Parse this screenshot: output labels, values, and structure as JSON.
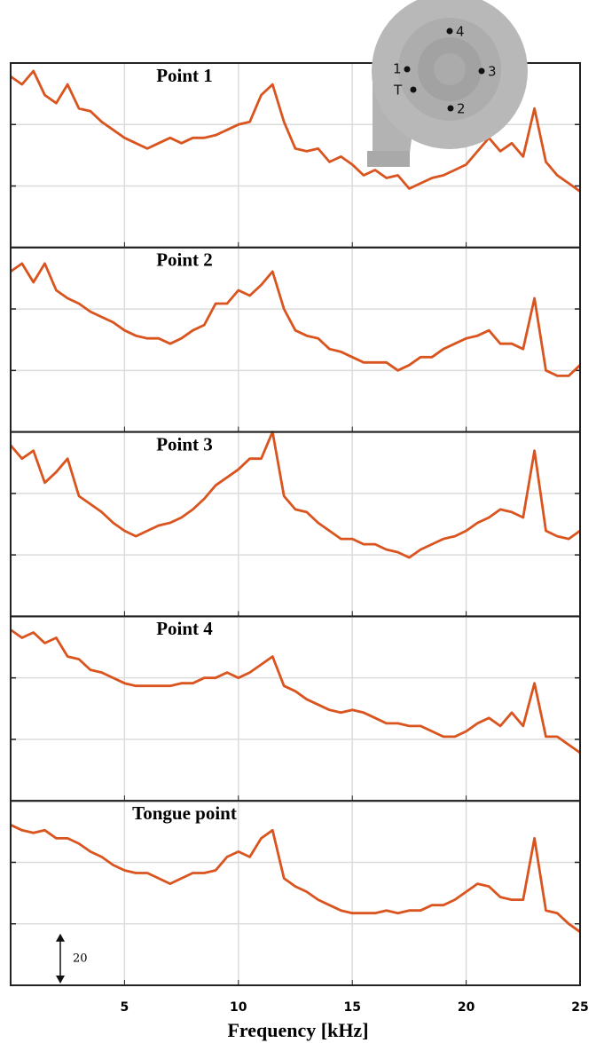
{
  "chart_data": [
    {
      "type": "line",
      "title": "Point 1",
      "color": "#d9541e",
      "xlim": [
        0,
        25
      ],
      "xticks": [
        5,
        10,
        15,
        20,
        25
      ],
      "ylim": [
        0,
        69
      ],
      "yticks": [
        23,
        46
      ],
      "grid": true,
      "x": [
        0,
        0.5,
        1,
        1.5,
        2,
        2.5,
        3,
        3.5,
        4,
        4.5,
        5,
        5.5,
        6,
        6.5,
        7,
        7.5,
        8,
        8.5,
        9,
        9.5,
        10,
        10.5,
        11,
        11.5,
        12,
        12.5,
        13,
        13.5,
        14,
        14.5,
        15,
        15.5,
        16,
        16.5,
        17,
        17.5,
        18,
        18.5,
        19,
        19.5,
        20,
        20.5,
        21,
        21.5,
        22,
        22.5,
        23,
        23.5,
        24,
        24.5,
        25
      ],
      "values": [
        64,
        61,
        66,
        57,
        54,
        61,
        52,
        51,
        47,
        44,
        41,
        39,
        37,
        39,
        41,
        39,
        41,
        41,
        42,
        44,
        46,
        47,
        57,
        61,
        47,
        37,
        36,
        37,
        32,
        34,
        31,
        27,
        29,
        26,
        27,
        22,
        24,
        26,
        27,
        29,
        31,
        36,
        41,
        36,
        39,
        34,
        52,
        32,
        27,
        24,
        21
      ]
    },
    {
      "type": "line",
      "title": "Point 2",
      "color": "#d9541e",
      "xlim": [
        0,
        25
      ],
      "xticks": [
        5,
        10,
        15,
        20,
        25
      ],
      "ylim": [
        0,
        69
      ],
      "yticks": [
        23,
        46
      ],
      "grid": true,
      "x": [
        0,
        0.5,
        1,
        1.5,
        2,
        2.5,
        3,
        3.5,
        4,
        4.5,
        5,
        5.5,
        6,
        6.5,
        7,
        7.5,
        8,
        8.5,
        9,
        9.5,
        10,
        10.5,
        11,
        11.5,
        12,
        12.5,
        13,
        13.5,
        14,
        14.5,
        15,
        15.5,
        16,
        16.5,
        17,
        17.5,
        18,
        18.5,
        19,
        19.5,
        20,
        20.5,
        21,
        21.5,
        22,
        22.5,
        23,
        23.5,
        24,
        24.5,
        25
      ],
      "values": [
        60,
        63,
        56,
        63,
        53,
        50,
        48,
        45,
        43,
        41,
        38,
        36,
        35,
        35,
        33,
        35,
        38,
        40,
        48,
        48,
        53,
        51,
        55,
        60,
        46,
        38,
        36,
        35,
        31,
        30,
        28,
        26,
        26,
        26,
        23,
        25,
        28,
        28,
        31,
        33,
        35,
        36,
        38,
        33,
        33,
        31,
        50,
        23,
        21,
        21,
        25
      ]
    },
    {
      "type": "line",
      "title": "Point 3",
      "color": "#d9541e",
      "xlim": [
        0,
        25
      ],
      "xticks": [
        5,
        10,
        15,
        20,
        25
      ],
      "ylim": [
        0,
        69
      ],
      "yticks": [
        23,
        46
      ],
      "grid": true,
      "x": [
        0,
        0.5,
        1,
        1.5,
        2,
        2.5,
        3,
        3.5,
        4,
        4.5,
        5,
        5.5,
        6,
        6.5,
        7,
        7.5,
        8,
        8.5,
        9,
        9.5,
        10,
        10.5,
        11,
        11.5,
        12,
        12.5,
        13,
        13.5,
        14,
        14.5,
        15,
        15.5,
        16,
        16.5,
        17,
        17.5,
        18,
        18.5,
        19,
        19.5,
        20,
        20.5,
        21,
        21.5,
        22,
        22.5,
        23,
        23.5,
        24,
        24.5,
        25
      ],
      "values": [
        64,
        59,
        62,
        50,
        54,
        59,
        45,
        42,
        39,
        35,
        32,
        30,
        32,
        34,
        35,
        37,
        40,
        44,
        49,
        52,
        55,
        59,
        59,
        69,
        45,
        40,
        39,
        35,
        32,
        29,
        29,
        27,
        27,
        25,
        24,
        22,
        25,
        27,
        29,
        30,
        32,
        35,
        37,
        40,
        39,
        37,
        62,
        32,
        30,
        29,
        32
      ]
    },
    {
      "type": "line",
      "title": "Point 4",
      "color": "#d9541e",
      "xlim": [
        0,
        25
      ],
      "xticks": [
        5,
        10,
        15,
        20,
        25
      ],
      "ylim": [
        0,
        69
      ],
      "yticks": [
        23,
        46
      ],
      "grid": true,
      "x": [
        0,
        0.5,
        1,
        1.5,
        2,
        2.5,
        3,
        3.5,
        4,
        4.5,
        5,
        5.5,
        6,
        6.5,
        7,
        7.5,
        8,
        8.5,
        9,
        9.5,
        10,
        10.5,
        11,
        11.5,
        12,
        12.5,
        13,
        13.5,
        14,
        14.5,
        15,
        15.5,
        16,
        16.5,
        17,
        17.5,
        18,
        18.5,
        19,
        19.5,
        20,
        20.5,
        21,
        21.5,
        22,
        22.5,
        23,
        23.5,
        24,
        24.5,
        25
      ],
      "values": [
        64,
        61,
        63,
        59,
        61,
        54,
        53,
        49,
        48,
        46,
        44,
        43,
        43,
        43,
        43,
        44,
        44,
        46,
        46,
        48,
        46,
        48,
        51,
        54,
        43,
        41,
        38,
        36,
        34,
        33,
        34,
        33,
        31,
        29,
        29,
        28,
        28,
        26,
        24,
        24,
        26,
        29,
        31,
        28,
        33,
        28,
        44,
        24,
        24,
        21,
        18
      ]
    },
    {
      "type": "line",
      "title": "Tongue point",
      "color": "#d9541e",
      "xlim": [
        0,
        25
      ],
      "xticks": [
        5,
        10,
        15,
        20,
        25
      ],
      "ylim": [
        0,
        69
      ],
      "yticks": [
        23,
        46
      ],
      "grid": true,
      "x": [
        0,
        0.5,
        1,
        1.5,
        2,
        2.5,
        3,
        3.5,
        4,
        4.5,
        5,
        5.5,
        6,
        6.5,
        7,
        7.5,
        8,
        8.5,
        9,
        9.5,
        10,
        10.5,
        11,
        11.5,
        12,
        12.5,
        13,
        13.5,
        14,
        14.5,
        15,
        15.5,
        16,
        16.5,
        17,
        17.5,
        18,
        18.5,
        19,
        19.5,
        20,
        20.5,
        21,
        21.5,
        22,
        22.5,
        23,
        23.5,
        24,
        24.5,
        25
      ],
      "values": [
        60,
        58,
        57,
        58,
        55,
        55,
        53,
        50,
        48,
        45,
        43,
        42,
        42,
        40,
        38,
        40,
        42,
        42,
        43,
        48,
        50,
        48,
        55,
        58,
        40,
        37,
        35,
        32,
        30,
        28,
        27,
        27,
        27,
        28,
        27,
        28,
        28,
        30,
        30,
        32,
        35,
        38,
        37,
        33,
        32,
        32,
        55,
        28,
        27,
        23,
        20
      ],
      "xlabel": "Frequency [kHz]",
      "scale_bar": 20
    }
  ],
  "inset": {
    "labels": [
      "1",
      "2",
      "3",
      "4",
      "T"
    ]
  }
}
